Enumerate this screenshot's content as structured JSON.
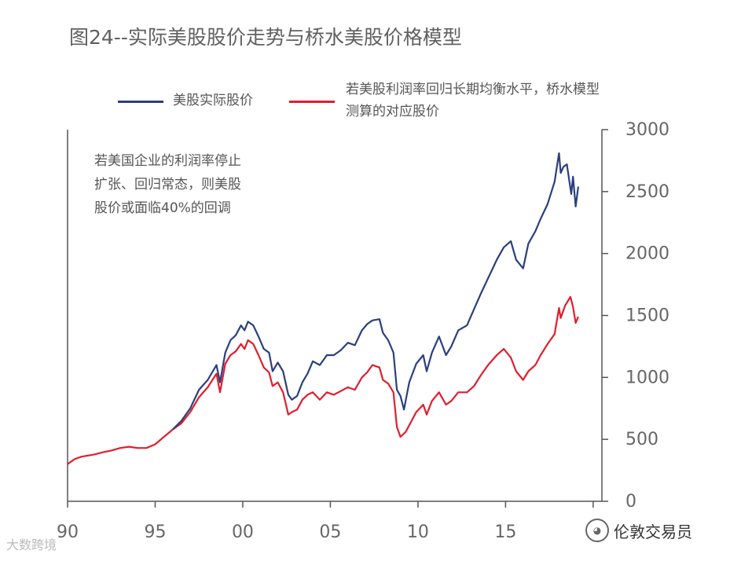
{
  "page": {
    "title": "图24--实际美股股价走势与桥水美股价格模型"
  },
  "annotation": [
    "若美国企业的利润率停止",
    "扩张、回归常态，则美股",
    "股价或面临40%的回调"
  ],
  "watermarks": {
    "left": "大数跨境",
    "right": "伦敦交易员"
  },
  "colors": {
    "actual": "#2b3f7e",
    "model": "#e01e2e",
    "axis": "#555555"
  },
  "chart_data": {
    "type": "line",
    "title": "图24--实际美股股价走势与桥水美股价格模型",
    "xlabel": "",
    "ylabel": "",
    "xlim": [
      1990,
      2020.5
    ],
    "ylim": [
      0,
      3000
    ],
    "x_ticks": [
      1990,
      1995,
      2000,
      2005,
      2010,
      2015,
      2020
    ],
    "x_tick_labels": [
      "90",
      "95",
      "00",
      "05",
      "10",
      "15",
      ""
    ],
    "y_ticks": [
      0,
      500,
      1000,
      1500,
      2000,
      2500,
      3000
    ],
    "y_tick_labels": [
      "0",
      "500",
      "1000",
      "1500",
      "2000",
      "2500",
      "3000"
    ],
    "y_axis_side": "right",
    "legend_position": "top",
    "series": [
      {
        "name": "美股实际股价",
        "color": "#2b3f7e",
        "points": [
          [
            1996.0,
            580
          ],
          [
            1996.5,
            650
          ],
          [
            1997.0,
            750
          ],
          [
            1997.5,
            900
          ],
          [
            1998.0,
            980
          ],
          [
            1998.5,
            1100
          ],
          [
            1998.7,
            960
          ],
          [
            1999.0,
            1200
          ],
          [
            1999.3,
            1300
          ],
          [
            1999.6,
            1340
          ],
          [
            1999.9,
            1420
          ],
          [
            2000.1,
            1380
          ],
          [
            2000.3,
            1450
          ],
          [
            2000.6,
            1420
          ],
          [
            2000.9,
            1330
          ],
          [
            2001.2,
            1230
          ],
          [
            2001.5,
            1200
          ],
          [
            2001.7,
            1050
          ],
          [
            2002.0,
            1120
          ],
          [
            2002.3,
            1050
          ],
          [
            2002.6,
            860
          ],
          [
            2002.8,
            820
          ],
          [
            2003.1,
            850
          ],
          [
            2003.4,
            960
          ],
          [
            2003.7,
            1030
          ],
          [
            2004.0,
            1130
          ],
          [
            2004.4,
            1100
          ],
          [
            2004.8,
            1180
          ],
          [
            2005.2,
            1180
          ],
          [
            2005.6,
            1220
          ],
          [
            2006.0,
            1280
          ],
          [
            2006.4,
            1260
          ],
          [
            2006.8,
            1380
          ],
          [
            2007.1,
            1430
          ],
          [
            2007.4,
            1460
          ],
          [
            2007.8,
            1470
          ],
          [
            2008.0,
            1360
          ],
          [
            2008.3,
            1300
          ],
          [
            2008.6,
            1200
          ],
          [
            2008.8,
            900
          ],
          [
            2009.0,
            850
          ],
          [
            2009.2,
            740
          ],
          [
            2009.5,
            960
          ],
          [
            2009.9,
            1110
          ],
          [
            2010.3,
            1180
          ],
          [
            2010.5,
            1050
          ],
          [
            2010.8,
            1200
          ],
          [
            2011.2,
            1330
          ],
          [
            2011.6,
            1180
          ],
          [
            2011.9,
            1250
          ],
          [
            2012.3,
            1380
          ],
          [
            2012.8,
            1420
          ],
          [
            2013.2,
            1550
          ],
          [
            2013.6,
            1680
          ],
          [
            2014.0,
            1800
          ],
          [
            2014.5,
            1950
          ],
          [
            2014.9,
            2050
          ],
          [
            2015.3,
            2100
          ],
          [
            2015.6,
            1950
          ],
          [
            2016.0,
            1880
          ],
          [
            2016.3,
            2080
          ],
          [
            2016.7,
            2180
          ],
          [
            2017.0,
            2280
          ],
          [
            2017.4,
            2400
          ],
          [
            2017.8,
            2580
          ],
          [
            2018.05,
            2810
          ],
          [
            2018.15,
            2650
          ],
          [
            2018.3,
            2700
          ],
          [
            2018.5,
            2720
          ],
          [
            2018.75,
            2480
          ],
          [
            2018.85,
            2620
          ],
          [
            2019.0,
            2380
          ],
          [
            2019.15,
            2540
          ]
        ]
      },
      {
        "name": "若美股利润率回归长期均衡水平，桥水模型测算的对应股价",
        "color": "#e01e2e",
        "points": [
          [
            1990.0,
            300
          ],
          [
            1990.4,
            340
          ],
          [
            1990.8,
            360
          ],
          [
            1991.2,
            370
          ],
          [
            1991.6,
            380
          ],
          [
            1992.0,
            395
          ],
          [
            1992.5,
            410
          ],
          [
            1993.0,
            430
          ],
          [
            1993.5,
            440
          ],
          [
            1994.0,
            430
          ],
          [
            1994.5,
            430
          ],
          [
            1995.0,
            460
          ],
          [
            1995.5,
            520
          ],
          [
            1996.0,
            580
          ],
          [
            1996.5,
            630
          ],
          [
            1997.0,
            720
          ],
          [
            1997.5,
            840
          ],
          [
            1998.0,
            920
          ],
          [
            1998.5,
            1030
          ],
          [
            1998.7,
            880
          ],
          [
            1999.0,
            1110
          ],
          [
            1999.3,
            1180
          ],
          [
            1999.6,
            1210
          ],
          [
            1999.9,
            1270
          ],
          [
            2000.1,
            1230
          ],
          [
            2000.3,
            1300
          ],
          [
            2000.6,
            1270
          ],
          [
            2000.9,
            1180
          ],
          [
            2001.2,
            1080
          ],
          [
            2001.5,
            1040
          ],
          [
            2001.7,
            930
          ],
          [
            2002.0,
            960
          ],
          [
            2002.3,
            880
          ],
          [
            2002.6,
            700
          ],
          [
            2002.8,
            720
          ],
          [
            2003.1,
            740
          ],
          [
            2003.4,
            820
          ],
          [
            2003.7,
            860
          ],
          [
            2004.0,
            880
          ],
          [
            2004.4,
            820
          ],
          [
            2004.8,
            880
          ],
          [
            2005.2,
            860
          ],
          [
            2005.6,
            890
          ],
          [
            2006.0,
            920
          ],
          [
            2006.4,
            900
          ],
          [
            2006.8,
            1000
          ],
          [
            2007.1,
            1040
          ],
          [
            2007.4,
            1100
          ],
          [
            2007.8,
            1080
          ],
          [
            2008.0,
            980
          ],
          [
            2008.3,
            950
          ],
          [
            2008.6,
            880
          ],
          [
            2008.8,
            600
          ],
          [
            2009.0,
            520
          ],
          [
            2009.3,
            560
          ],
          [
            2009.6,
            640
          ],
          [
            2009.9,
            720
          ],
          [
            2010.3,
            780
          ],
          [
            2010.5,
            700
          ],
          [
            2010.8,
            810
          ],
          [
            2011.2,
            880
          ],
          [
            2011.6,
            780
          ],
          [
            2011.9,
            810
          ],
          [
            2012.3,
            880
          ],
          [
            2012.8,
            880
          ],
          [
            2013.2,
            930
          ],
          [
            2013.6,
            1020
          ],
          [
            2014.0,
            1100
          ],
          [
            2014.5,
            1180
          ],
          [
            2014.9,
            1230
          ],
          [
            2015.3,
            1160
          ],
          [
            2015.6,
            1050
          ],
          [
            2016.0,
            980
          ],
          [
            2016.3,
            1050
          ],
          [
            2016.7,
            1100
          ],
          [
            2017.0,
            1180
          ],
          [
            2017.4,
            1270
          ],
          [
            2017.8,
            1350
          ],
          [
            2018.05,
            1560
          ],
          [
            2018.15,
            1480
          ],
          [
            2018.4,
            1580
          ],
          [
            2018.7,
            1650
          ],
          [
            2018.85,
            1570
          ],
          [
            2019.0,
            1440
          ],
          [
            2019.15,
            1490
          ]
        ]
      }
    ]
  }
}
